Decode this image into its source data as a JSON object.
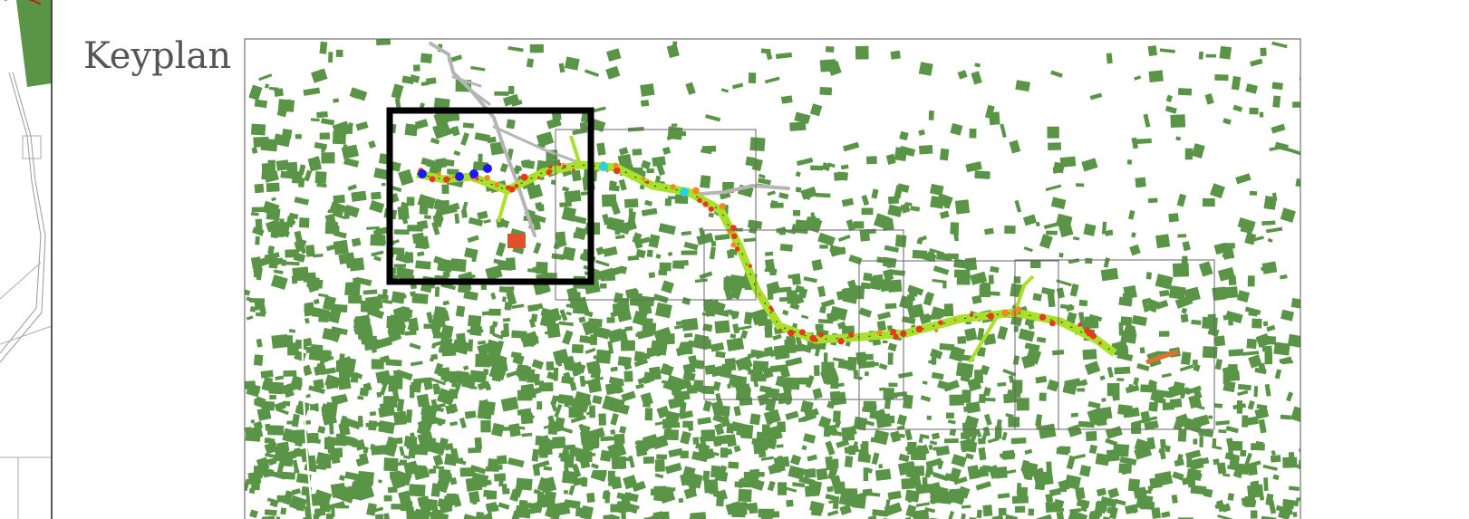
{
  "title": "Keyplan"
}
